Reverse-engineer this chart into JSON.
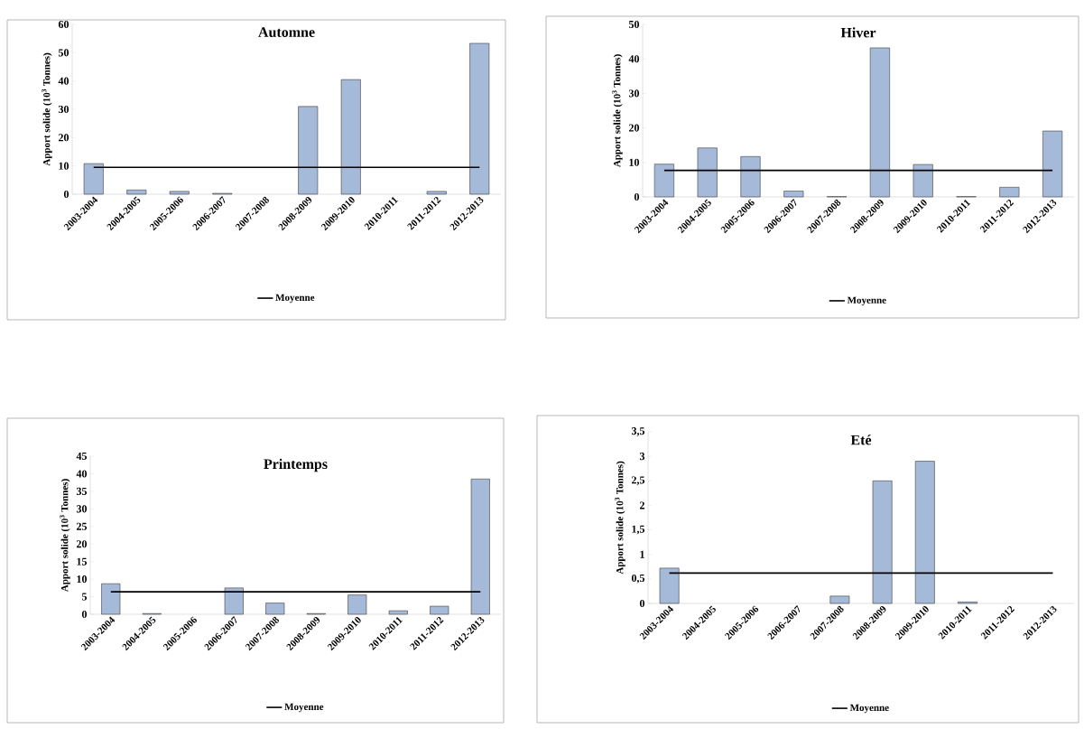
{
  "chart_data": [
    {
      "type": "bar",
      "title": "Automne",
      "ylabel": "Apport solide (10$^{3}$ Tonnes)",
      "categories": [
        "2003-2004",
        "2004-2005",
        "2005-2006",
        "2006-2007",
        "2007-2008",
        "2008-2009",
        "2009-2010",
        "2010-2011",
        "2011-2012",
        "2012-2013"
      ],
      "series": [
        {
          "color": "#a5b9d9",
          "values": [
            10.8,
            1.5,
            1.0,
            0.3,
            null,
            31,
            40.5,
            null,
            1.0,
            53.3
          ]
        },
        {
          "type": "line",
          "name": "Moyenne",
          "color": "#000000",
          "values": [
            9.5,
            9.5,
            9.5,
            9.5,
            9.5,
            9.5,
            9.5,
            9.5,
            9.5,
            9.5
          ]
        }
      ],
      "ylim": [
        0,
        60
      ],
      "yticks": [
        0,
        10,
        20,
        30,
        40,
        50,
        60
      ],
      "legend": "bottom",
      "marker": "none"
    },
    {
      "type": "bar",
      "title": "Hiver",
      "ylabel": "Apport solide (10$^{3}$ Tonnes)",
      "categories": [
        "2003-2004",
        "2004-2005",
        "2005-2006",
        "2006-2007",
        "2007-2008",
        "2008-2009",
        "2009-2010",
        "2010-2011",
        "2011-2012",
        "2012-2013"
      ],
      "series": [
        {
          "color": "#a5b9d9",
          "values": [
            9.5,
            14.2,
            11.7,
            1.7,
            0.1,
            43.2,
            9.4,
            0.1,
            2.8,
            19.1
          ]
        },
        {
          "type": "line",
          "name": "Moyenne",
          "color": "#000000",
          "values": [
            7.7,
            7.7,
            7.7,
            7.7,
            7.7,
            7.7,
            7.7,
            7.7,
            7.7,
            7.7
          ]
        }
      ],
      "ylim": [
        0,
        50
      ],
      "yticks": [
        0,
        10,
        20,
        30,
        40,
        50
      ],
      "legend": "bottom",
      "marker": "none"
    },
    {
      "type": "bar",
      "title": "Printemps",
      "ylabel": "Apport solide (10$^{3}$ Tonnes)",
      "categories": [
        "2003-2004",
        "2004-2005",
        "2005-2006",
        "2006-2007",
        "2007-2008",
        "2008-2009",
        "2009-2010",
        "2010-2011",
        "2011-2012",
        "2012-2013"
      ],
      "series": [
        {
          "color": "#a5b9d9",
          "values": [
            8.7,
            0.2,
            null,
            7.5,
            3.2,
            0.2,
            5.5,
            1.0,
            2.3,
            38.5
          ]
        },
        {
          "type": "line",
          "name": "Moyenne",
          "color": "#000000",
          "values": [
            6.4,
            6.4,
            6.4,
            6.4,
            6.4,
            6.4,
            6.4,
            6.4,
            6.4,
            6.4
          ]
        }
      ],
      "ylim": [
        0,
        45
      ],
      "yticks": [
        0,
        5,
        10,
        15,
        20,
        25,
        30,
        35,
        40,
        45
      ],
      "legend": "bottom",
      "marker": "none"
    },
    {
      "type": "bar",
      "title": "Eté",
      "ylabel": "Apport solide (10$^{3}$ Tonnes)",
      "categories": [
        "2003-2004",
        "2004-2005",
        "2005-2006",
        "2006-2007",
        "2007-2008",
        "2008-2009",
        "2009-2010",
        "2010-2011",
        "2011-2012",
        "2012-2013"
      ],
      "series": [
        {
          "color": "#a5b9d9",
          "values": [
            0.72,
            null,
            null,
            null,
            0.15,
            2.5,
            2.9,
            0.03,
            null,
            null
          ]
        },
        {
          "type": "line",
          "name": "Moyenne",
          "color": "#000000",
          "values": [
            0.62,
            0.62,
            0.62,
            0.62,
            0.62,
            0.62,
            0.62,
            0.62,
            0.62,
            0.62
          ]
        }
      ],
      "ylim": [
        0,
        3.5
      ],
      "yticks": [
        0,
        {
          "value": 0.5,
          "label": "0,5"
        },
        1,
        {
          "value": 1.5,
          "label": "1,5"
        },
        2,
        {
          "value": 2.5,
          "label": "2,5"
        },
        3,
        {
          "value": 3.5,
          "label": "3,5"
        }
      ],
      "legend": "bottom",
      "marker": "none"
    }
  ]
}
